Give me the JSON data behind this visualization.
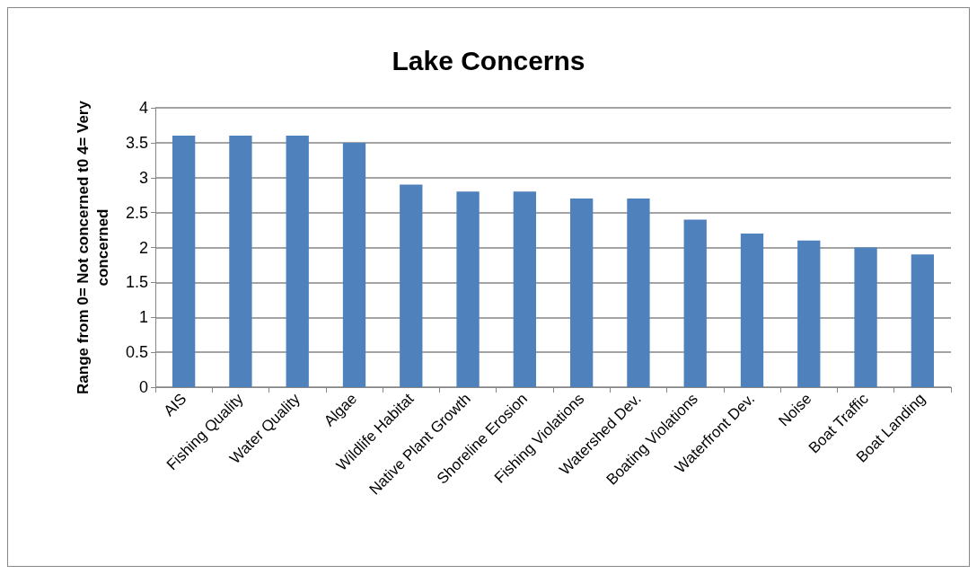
{
  "chart_data": {
    "type": "bar",
    "title": "Lake Concerns",
    "ylabel": "Range from 0= Not concerned t0 4= Very\nconcerned",
    "categories": [
      "AIS",
      "Fishing Quality",
      "Water Quality",
      "Algae",
      "Wildlife Habitat",
      "Native Plant Growth",
      "Shoreline Erosion",
      "Fishing Violations",
      "Watershed Dev.",
      "Boating Violations",
      "Waterfront Dev.",
      "Noise",
      "Boat Traffic",
      "Boat Landing"
    ],
    "values": [
      3.6,
      3.6,
      3.6,
      3.5,
      2.9,
      2.8,
      2.8,
      2.7,
      2.7,
      2.4,
      2.2,
      2.1,
      2.0,
      1.9
    ],
    "color": "#4f81bd",
    "ylim": [
      0,
      4
    ],
    "yticks": [
      0,
      0.5,
      1,
      1.5,
      2,
      2.5,
      3,
      3.5,
      4
    ],
    "grid": "y"
  }
}
